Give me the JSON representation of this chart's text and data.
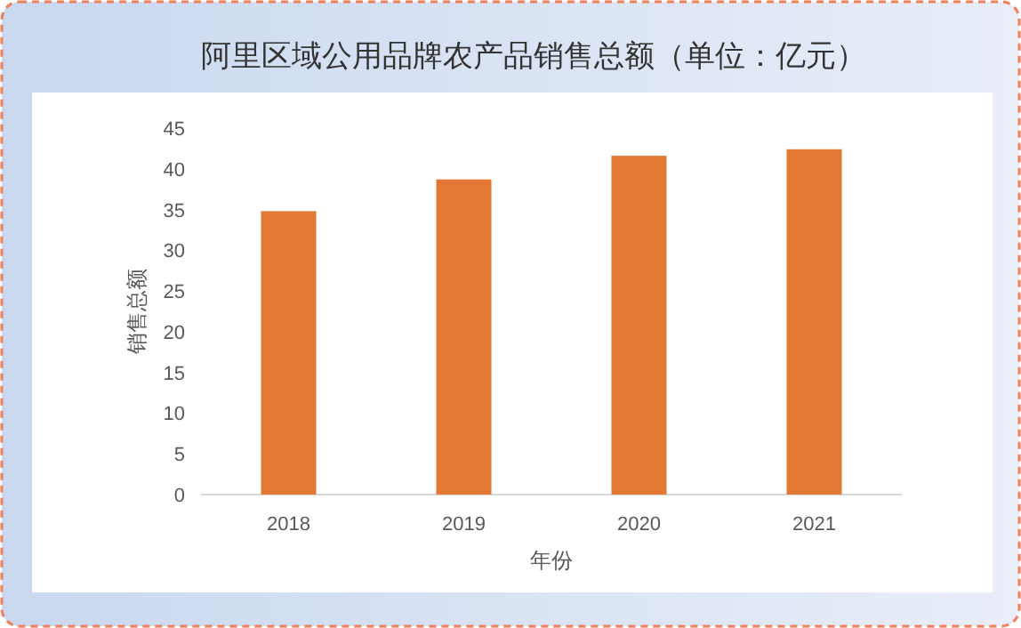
{
  "chart_data": {
    "type": "bar",
    "title": "阿里区域公用品牌农产品销售总额（单位：亿元）",
    "xlabel": "年份",
    "ylabel": "销售总额",
    "categories": [
      "2018",
      "2019",
      "2020",
      "2021"
    ],
    "values": [
      34.8,
      38.7,
      41.6,
      42.4
    ],
    "color": "#e27833",
    "ylim": [
      0,
      45
    ],
    "yticks": [
      0,
      5,
      10,
      15,
      20,
      25,
      30,
      35,
      40,
      45
    ],
    "grid": false,
    "legend": false
  }
}
